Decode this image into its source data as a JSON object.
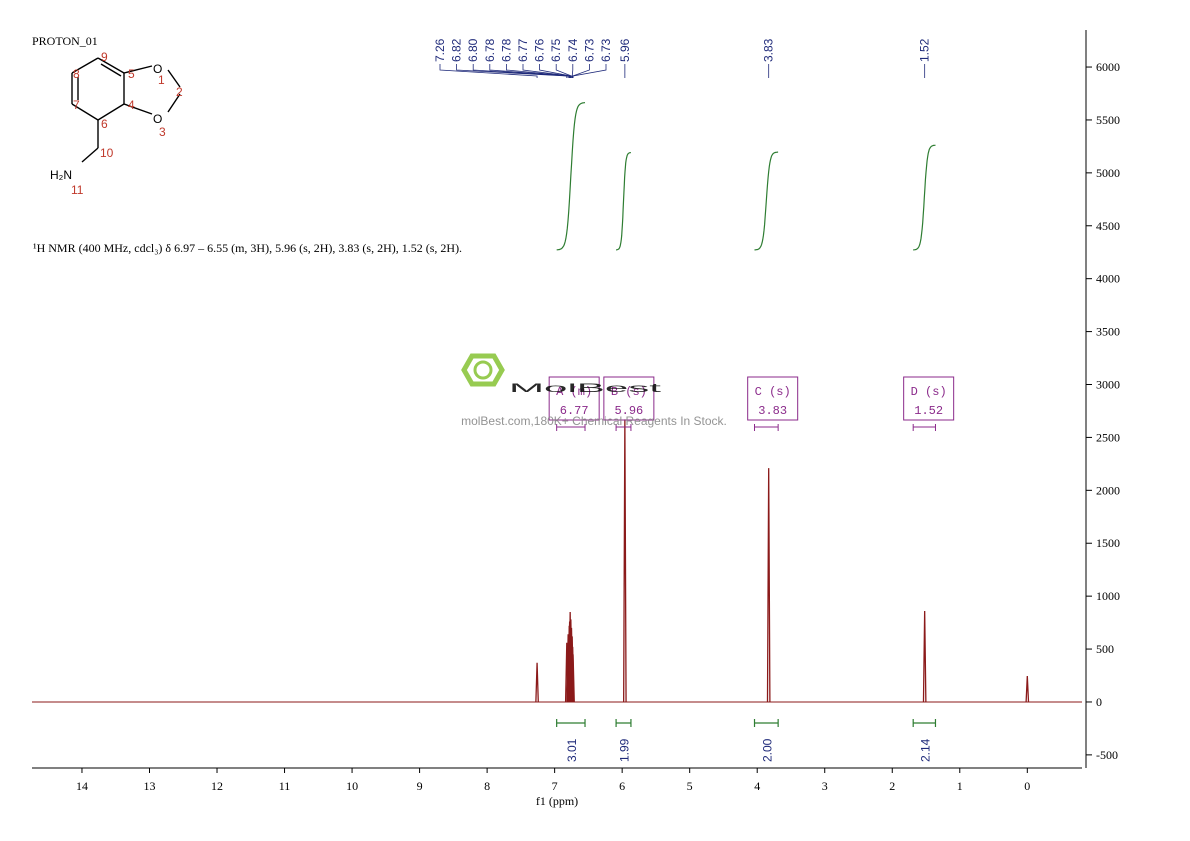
{
  "chart_data": {
    "type": "nmr",
    "title": "PROTON_01",
    "annotation": "¹H NMR (400 MHz, cdcl₃) δ 6.97 – 6.55 (m, 3H), 5.96 (s, 2H), 3.83 (s, 2H), 1.52 (s, 2H).",
    "x_label": "f1 (ppm)",
    "xlim": [
      14.74,
      -0.81
    ],
    "xticks": [
      14,
      13,
      12,
      11,
      10,
      9,
      8,
      7,
      6,
      5,
      4,
      3,
      2,
      1,
      0
    ],
    "ylim": [
      -624,
      6350
    ],
    "yticks": [
      -500,
      0,
      500,
      1000,
      1500,
      2000,
      2500,
      3000,
      3500,
      4000,
      4500,
      5000,
      5500,
      6000
    ],
    "color": "#8b1a1a",
    "label_color": "#1f2a7a",
    "peaks": [
      {
        "ppm": 7.26,
        "height": 370,
        "label": "7.26"
      },
      {
        "ppm": 6.82,
        "height": 560,
        "label": "6.82"
      },
      {
        "ppm": 6.8,
        "height": 640,
        "label": "6.80"
      },
      {
        "ppm": 6.784,
        "height": 720,
        "label": "6.78"
      },
      {
        "ppm": 6.778,
        "height": 760,
        "label": "6.78"
      },
      {
        "ppm": 6.77,
        "height": 850,
        "label": "6.77"
      },
      {
        "ppm": 6.76,
        "height": 780,
        "label": "6.76"
      },
      {
        "ppm": 6.75,
        "height": 700,
        "label": "6.75"
      },
      {
        "ppm": 6.74,
        "height": 620,
        "label": "6.74"
      },
      {
        "ppm": 6.733,
        "height": 520,
        "label": "6.73"
      },
      {
        "ppm": 6.727,
        "height": 450,
        "label": "6.73"
      },
      {
        "ppm": 5.96,
        "height": 2670,
        "label": "5.96"
      },
      {
        "ppm": 3.83,
        "height": 2210,
        "label": "3.83"
      },
      {
        "ppm": 1.52,
        "height": 860,
        "label": "1.52"
      },
      {
        "ppm": 0,
        "height": 245,
        "label": null
      }
    ],
    "integrals": {
      "from": [
        6.97,
        6.09,
        4.04,
        1.69
      ],
      "to": [
        6.55,
        5.87,
        3.69,
        1.36
      ],
      "values": [
        3.01,
        1.99,
        2,
        2.14
      ],
      "value_labels": [
        "3.01",
        "1.99",
        "2.00",
        "2.14"
      ],
      "color": "#2e7d32"
    },
    "multiplets": [
      {
        "label": "A (m)",
        "shift": 6.77
      },
      {
        "label": "B (s)",
        "shift": 5.96
      },
      {
        "label": "C (s)",
        "shift": 3.83
      },
      {
        "label": "D (s)",
        "shift": 1.52
      }
    ],
    "multiplet_color": "#8b2a8b"
  },
  "molecule": {
    "atoms": [
      "O",
      "O",
      "H₂N"
    ],
    "numbers": [
      "1",
      "2",
      "3",
      "4",
      "5",
      "6",
      "7",
      "8",
      "9",
      "10",
      "11"
    ]
  },
  "watermark": {
    "name": "MolBest",
    "tagline": "molBest.com,180K+ Chemical Reagents In Stock."
  }
}
